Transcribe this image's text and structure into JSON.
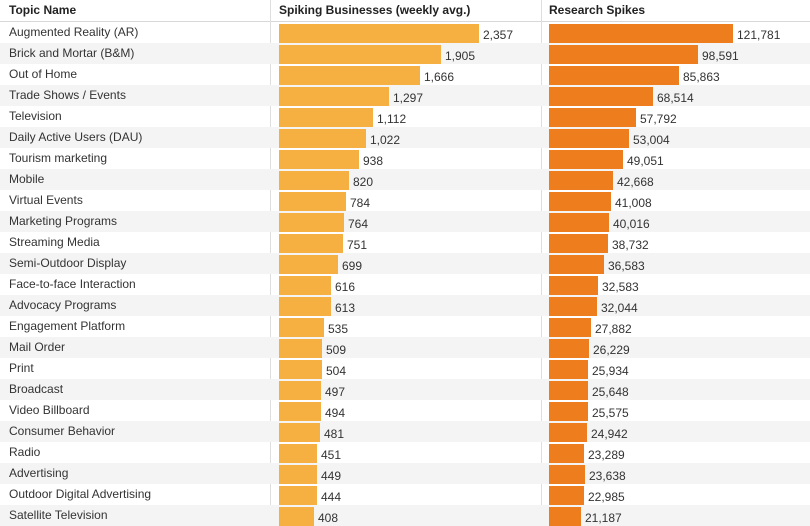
{
  "chart_data": {
    "type": "table",
    "columns": [
      "Topic Name",
      "Spiking Businesses (weekly avg.)",
      "Research Spikes"
    ],
    "colors": {
      "spiking": "#f5b041",
      "research": "#ee7d1e"
    },
    "rows": [
      {
        "topic": "Augmented Reality (AR)",
        "spiking": 2357,
        "spiking_label": "2,357",
        "research": 121781,
        "research_label": "121,781"
      },
      {
        "topic": "Brick and Mortar (B&M)",
        "spiking": 1905,
        "spiking_label": "1,905",
        "research": 98591,
        "research_label": "98,591"
      },
      {
        "topic": "Out of Home",
        "spiking": 1666,
        "spiking_label": "1,666",
        "research": 85863,
        "research_label": "85,863"
      },
      {
        "topic": "Trade Shows / Events",
        "spiking": 1297,
        "spiking_label": "1,297",
        "research": 68514,
        "research_label": "68,514"
      },
      {
        "topic": "Television",
        "spiking": 1112,
        "spiking_label": "1,112",
        "research": 57792,
        "research_label": "57,792"
      },
      {
        "topic": "Daily Active Users (DAU)",
        "spiking": 1022,
        "spiking_label": "1,022",
        "research": 53004,
        "research_label": "53,004"
      },
      {
        "topic": "Tourism marketing",
        "spiking": 938,
        "spiking_label": "938",
        "research": 49051,
        "research_label": "49,051"
      },
      {
        "topic": "Mobile",
        "spiking": 820,
        "spiking_label": "820",
        "research": 42668,
        "research_label": "42,668"
      },
      {
        "topic": "Virtual Events",
        "spiking": 784,
        "spiking_label": "784",
        "research": 41008,
        "research_label": "41,008"
      },
      {
        "topic": "Marketing Programs",
        "spiking": 764,
        "spiking_label": "764",
        "research": 40016,
        "research_label": "40,016"
      },
      {
        "topic": "Streaming Media",
        "spiking": 751,
        "spiking_label": "751",
        "research": 38732,
        "research_label": "38,732"
      },
      {
        "topic": "Semi-Outdoor Display",
        "spiking": 699,
        "spiking_label": "699",
        "research": 36583,
        "research_label": "36,583"
      },
      {
        "topic": "Face-to-face Interaction",
        "spiking": 616,
        "spiking_label": "616",
        "research": 32583,
        "research_label": "32,583"
      },
      {
        "topic": "Advocacy Programs",
        "spiking": 613,
        "spiking_label": "613",
        "research": 32044,
        "research_label": "32,044"
      },
      {
        "topic": "Engagement Platform",
        "spiking": 535,
        "spiking_label": "535",
        "research": 27882,
        "research_label": "27,882"
      },
      {
        "topic": "Mail Order",
        "spiking": 509,
        "spiking_label": "509",
        "research": 26229,
        "research_label": "26,229"
      },
      {
        "topic": "Print",
        "spiking": 504,
        "spiking_label": "504",
        "research": 25934,
        "research_label": "25,934"
      },
      {
        "topic": "Broadcast",
        "spiking": 497,
        "spiking_label": "497",
        "research": 25648,
        "research_label": "25,648"
      },
      {
        "topic": "Video Billboard",
        "spiking": 494,
        "spiking_label": "494",
        "research": 25575,
        "research_label": "25,575"
      },
      {
        "topic": "Consumer Behavior",
        "spiking": 481,
        "spiking_label": "481",
        "research": 24942,
        "research_label": "24,942"
      },
      {
        "topic": "Radio",
        "spiking": 451,
        "spiking_label": "451",
        "research": 23289,
        "research_label": "23,289"
      },
      {
        "topic": "Advertising",
        "spiking": 449,
        "spiking_label": "449",
        "research": 23638,
        "research_label": "23,638"
      },
      {
        "topic": "Outdoor Digital Advertising",
        "spiking": 444,
        "spiking_label": "444",
        "research": 22985,
        "research_label": "22,985"
      },
      {
        "topic": "Satellite Television",
        "spiking": 408,
        "spiking_label": "408",
        "research": 21187,
        "research_label": "21,187"
      }
    ]
  }
}
